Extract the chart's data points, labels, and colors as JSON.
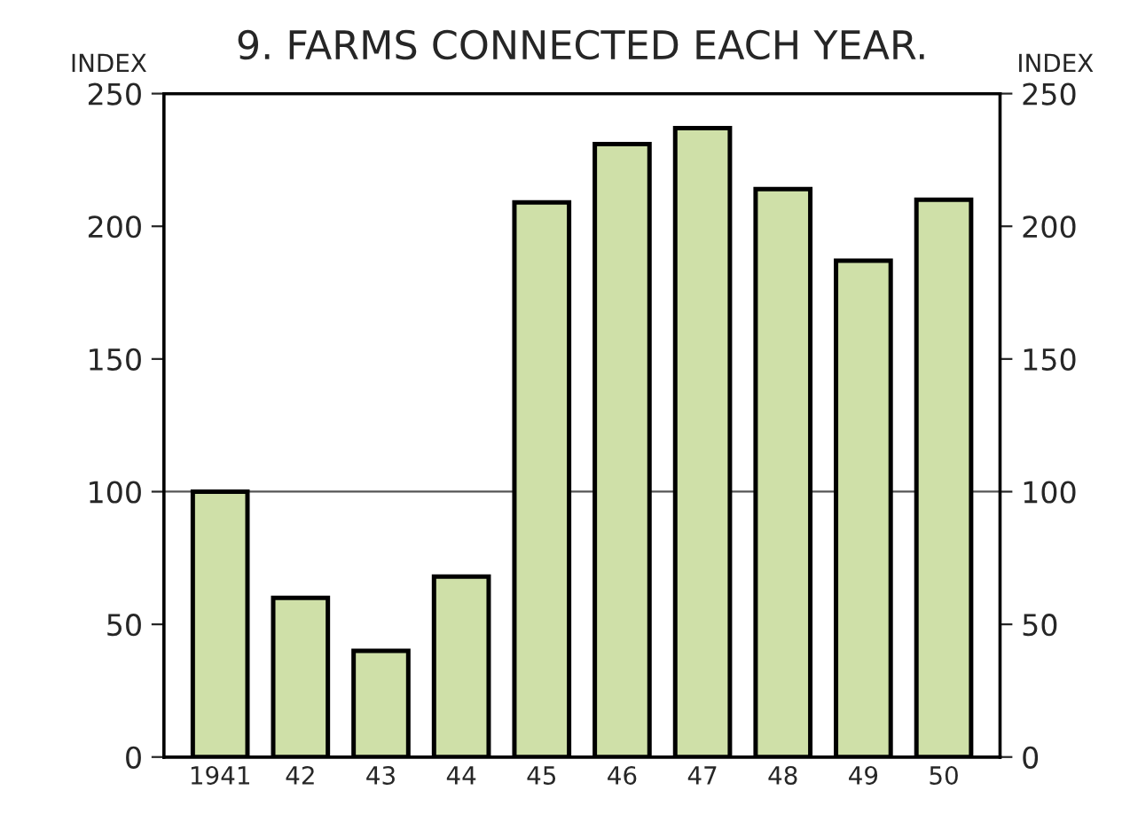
{
  "chart_data": {
    "type": "bar",
    "title": "9. FARMS CONNECTED EACH YEAR.",
    "ylabel": "INDEX",
    "y2label": "INDEX",
    "categories": [
      "1941",
      "42",
      "43",
      "44",
      "45",
      "46",
      "47",
      "48",
      "49",
      "50"
    ],
    "series": [
      {
        "color": "#cfe0a8",
        "values": [
          100,
          60,
          40,
          68,
          209,
          231,
          237,
          214,
          187,
          210
        ]
      }
    ],
    "ylim": [
      0,
      250
    ],
    "yticks": [
      0,
      50,
      100,
      150,
      200,
      250
    ],
    "y2lim": [
      0,
      250
    ],
    "y2ticks": [
      0,
      50,
      100,
      150,
      200,
      250
    ],
    "ref_lines": [
      {
        "axis": "y",
        "value": 100,
        "color": "#555555",
        "line_style": "solid"
      }
    ],
    "grid": false,
    "legend": false
  }
}
